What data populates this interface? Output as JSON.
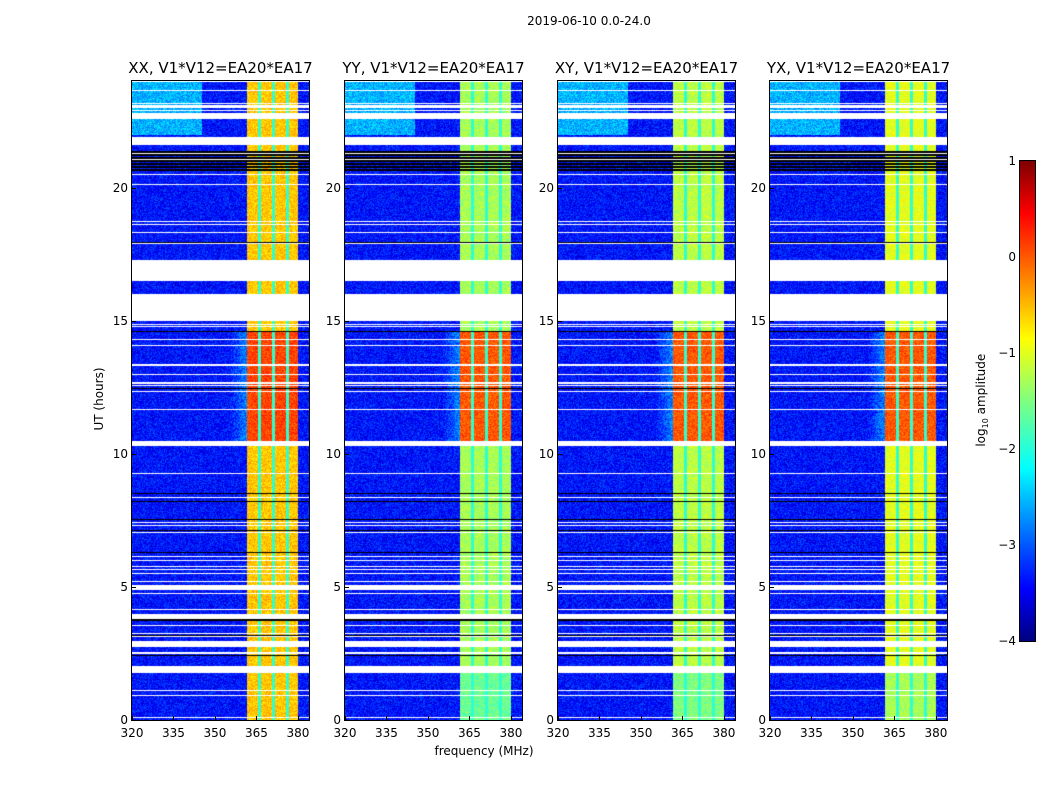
{
  "chart_data": {
    "type": "heatmap",
    "title": "2019-06-10 0.0-24.0",
    "xlabel": "frequency (MHz)",
    "ylabel": "UT (hours)",
    "xlim": [
      320,
      384
    ],
    "ylim": [
      0,
      24
    ],
    "xticks": [
      "320",
      "335",
      "350",
      "365",
      "380"
    ],
    "yticks": [
      "0",
      "5",
      "10",
      "15",
      "20"
    ],
    "panels": [
      {
        "title": "XX, V1*V12=EA20*EA17",
        "band_log_amplitude": -0.6,
        "peak_log_amplitude": 0.1
      },
      {
        "title": "YY, V1*V12=EA20*EA17",
        "band_log_amplitude": -1.3,
        "peak_log_amplitude": 0.0
      },
      {
        "title": "XY, V1*V12=EA20*EA17",
        "band_log_amplitude": -1.2,
        "peak_log_amplitude": 0.0
      },
      {
        "title": "YX, V1*V12=EA20*EA17",
        "band_log_amplitude": -1.0,
        "peak_log_amplitude": 0.0
      }
    ],
    "background_log_amplitude": -3.3,
    "rfi_band_mhz": [
      361.5,
      380
    ],
    "rfi_strong_hours": [
      10.5,
      14.6
    ],
    "flagged_hours": [
      [
        23.0,
        23.1
      ],
      [
        22.6,
        22.8
      ],
      [
        21.6,
        21.9
      ],
      [
        16.5,
        17.3
      ],
      [
        15.0,
        16.0
      ],
      [
        10.3,
        10.5
      ],
      [
        4.9,
        5.1
      ],
      [
        3.8,
        4.0
      ],
      [
        2.8,
        3.0
      ],
      [
        1.8,
        2.0
      ]
    ],
    "dark_hours": [
      [
        20.6,
        21.4
      ]
    ],
    "colorbar": {
      "label": "log10 amplitude",
      "range": [
        -4,
        1
      ],
      "ticks": [
        "1",
        "0",
        "−1",
        "−2",
        "−3",
        "−4"
      ]
    }
  }
}
